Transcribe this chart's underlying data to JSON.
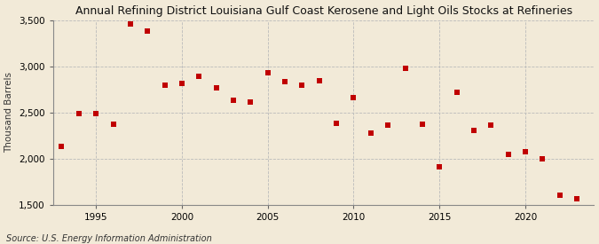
{
  "title": "Annual Refining District Louisiana Gulf Coast Kerosene and Light Oils Stocks at Refineries",
  "ylabel": "Thousand Barrels",
  "source": "Source: U.S. Energy Information Administration",
  "background_color": "#f2ead8",
  "years": [
    1993,
    1994,
    1995,
    1996,
    1997,
    1998,
    1999,
    2000,
    2001,
    2002,
    2003,
    2004,
    2005,
    2006,
    2007,
    2008,
    2009,
    2010,
    2011,
    2012,
    2013,
    2014,
    2015,
    2016,
    2017,
    2018,
    2019,
    2020,
    2021,
    2022,
    2023
  ],
  "values": [
    2130,
    2490,
    2490,
    2370,
    3460,
    3380,
    2800,
    2810,
    2890,
    2770,
    2630,
    2610,
    2930,
    2830,
    2800,
    2840,
    2380,
    2660,
    2280,
    2360,
    2980,
    2370,
    1910,
    2720,
    2310,
    2360,
    2050,
    2080,
    2000,
    1610,
    1570
  ],
  "marker_color": "#c00000",
  "marker_size": 5,
  "ylim": [
    1500,
    3500
  ],
  "yticks": [
    1500,
    2000,
    2500,
    3000,
    3500
  ],
  "xlim": [
    1992.5,
    2024
  ],
  "xticks": [
    1995,
    2000,
    2005,
    2010,
    2015,
    2020
  ],
  "grid_color": "#bbbbbb",
  "title_fontsize": 9,
  "label_fontsize": 7.5,
  "tick_fontsize": 7.5,
  "source_fontsize": 7
}
